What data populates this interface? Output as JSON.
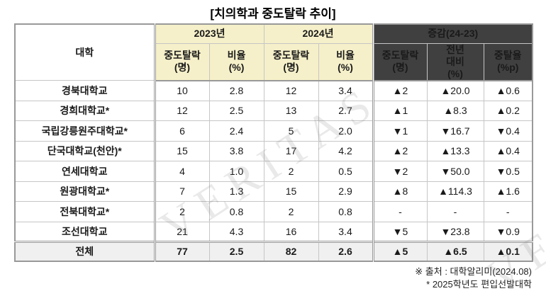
{
  "title": "[치의학과 중도탈락 추이]",
  "watermark": "VERITAS",
  "colors": {
    "header_yellow": "#F5F0C9",
    "header_dark": "#404040",
    "total_row_bg": "#F0F0F0",
    "increase_red": "#E60000",
    "decrease_blue": "#1414E6",
    "grid_line": "#C6C6C6",
    "section_line": "#999999"
  },
  "chart_data": {
    "type": "table",
    "title": "[치의학과 중도탈락 추이]",
    "headers": {
      "university": "대학",
      "y2023": "2023년",
      "y2024": "2024년",
      "change": "증감(24-23)",
      "dropout_label": "중도탈락\n(명)",
      "rate_label": "비율\n(%)",
      "yoy_label": "전년\n대비\n(%)",
      "pp_label": "중탈율\n(%p)"
    },
    "column_groups": [
      "대학",
      "2023년",
      "2024년",
      "증감(24-23)"
    ],
    "columns": [
      "대학",
      "2023 중도탈락(명)",
      "2023 비율(%)",
      "2024 중도탈락(명)",
      "2024 비율(%)",
      "증감 중도탈락(명)",
      "증감 전년대비(%)",
      "증감 중탈율(%p)"
    ],
    "rows": [
      [
        "경북대학교",
        "10",
        "2.8",
        "12",
        "3.4",
        "▲2",
        "▲20.0",
        "▲0.6"
      ],
      [
        "경희대학교*",
        "12",
        "2.5",
        "13",
        "2.7",
        "▲1",
        "▲8.3",
        "▲0.2"
      ],
      [
        "국립강릉원주대학교*",
        "6",
        "2.4",
        "5",
        "2.0",
        "▼1",
        "▼16.7",
        "▼0.4"
      ],
      [
        "단국대학교(천안)*",
        "15",
        "3.8",
        "17",
        "4.2",
        "▲2",
        "▲13.3",
        "▲0.4"
      ],
      [
        "연세대학교",
        "4",
        "1.0",
        "2",
        "0.5",
        "▼2",
        "▼50.0",
        "▼0.5"
      ],
      [
        "원광대학교*",
        "7",
        "1.3",
        "15",
        "2.9",
        "▲8",
        "▲114.3",
        "▲1.6"
      ],
      [
        "전북대학교*",
        "2",
        "0.8",
        "2",
        "0.8",
        "-",
        "-",
        "-"
      ],
      [
        "조선대학교",
        "21",
        "4.3",
        "16",
        "3.4",
        "▼5",
        "▼23.8",
        "▼0.9"
      ]
    ],
    "total_row": [
      "전체",
      "77",
      "2.5",
      "82",
      "2.6",
      "▲5",
      "▲6.5",
      "▲0.1"
    ]
  },
  "footer": {
    "source": "※ 출처 : 대학알리미(2024.08)",
    "note": "* 2025학년도 편입선발대학"
  }
}
